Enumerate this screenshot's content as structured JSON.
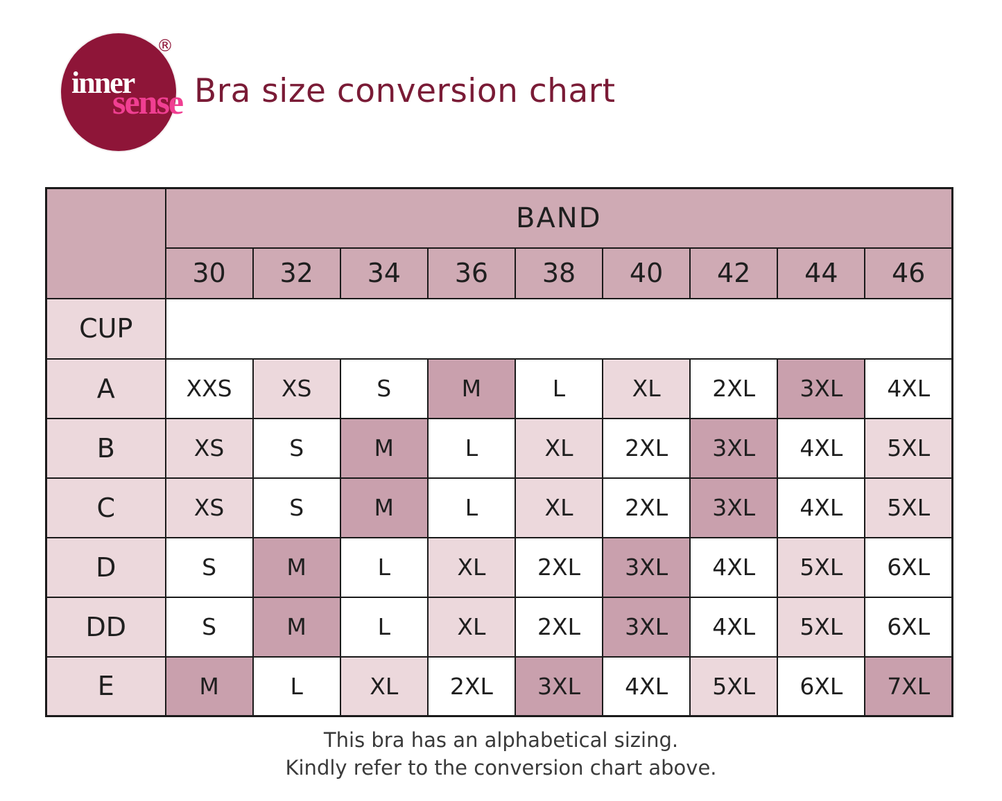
{
  "logo": {
    "word_top": "inner",
    "word_bottom": "sense",
    "registered_mark": "®"
  },
  "title": "Bra size conversion chart",
  "table": {
    "band_header": "BAND",
    "cup_header": "CUP",
    "band_sizes": [
      "30",
      "32",
      "34",
      "36",
      "38",
      "40",
      "42",
      "44",
      "46"
    ],
    "shade_legend": {
      "w": "white",
      "l": "light-pink",
      "d": "dark-pink"
    },
    "rows": [
      {
        "cup": "A",
        "cells": [
          {
            "v": "XXS",
            "s": "w"
          },
          {
            "v": "XS",
            "s": "l"
          },
          {
            "v": "S",
            "s": "w"
          },
          {
            "v": "M",
            "s": "d"
          },
          {
            "v": "L",
            "s": "w"
          },
          {
            "v": "XL",
            "s": "l"
          },
          {
            "v": "2XL",
            "s": "w"
          },
          {
            "v": "3XL",
            "s": "d"
          },
          {
            "v": "4XL",
            "s": "w"
          }
        ]
      },
      {
        "cup": "B",
        "cells": [
          {
            "v": "XS",
            "s": "l"
          },
          {
            "v": "S",
            "s": "w"
          },
          {
            "v": "M",
            "s": "d"
          },
          {
            "v": "L",
            "s": "w"
          },
          {
            "v": "XL",
            "s": "l"
          },
          {
            "v": "2XL",
            "s": "w"
          },
          {
            "v": "3XL",
            "s": "d"
          },
          {
            "v": "4XL",
            "s": "w"
          },
          {
            "v": "5XL",
            "s": "l"
          }
        ]
      },
      {
        "cup": "C",
        "cells": [
          {
            "v": "XS",
            "s": "l"
          },
          {
            "v": "S",
            "s": "w"
          },
          {
            "v": "M",
            "s": "d"
          },
          {
            "v": "L",
            "s": "w"
          },
          {
            "v": "XL",
            "s": "l"
          },
          {
            "v": "2XL",
            "s": "w"
          },
          {
            "v": "3XL",
            "s": "d"
          },
          {
            "v": "4XL",
            "s": "w"
          },
          {
            "v": "5XL",
            "s": "l"
          }
        ]
      },
      {
        "cup": "D",
        "cells": [
          {
            "v": "S",
            "s": "w"
          },
          {
            "v": "M",
            "s": "d"
          },
          {
            "v": "L",
            "s": "w"
          },
          {
            "v": "XL",
            "s": "l"
          },
          {
            "v": "2XL",
            "s": "w"
          },
          {
            "v": "3XL",
            "s": "d"
          },
          {
            "v": "4XL",
            "s": "w"
          },
          {
            "v": "5XL",
            "s": "l"
          },
          {
            "v": "6XL",
            "s": "w"
          }
        ]
      },
      {
        "cup": "DD",
        "cells": [
          {
            "v": "S",
            "s": "w"
          },
          {
            "v": "M",
            "s": "d"
          },
          {
            "v": "L",
            "s": "w"
          },
          {
            "v": "XL",
            "s": "l"
          },
          {
            "v": "2XL",
            "s": "w"
          },
          {
            "v": "3XL",
            "s": "d"
          },
          {
            "v": "4XL",
            "s": "w"
          },
          {
            "v": "5XL",
            "s": "l"
          },
          {
            "v": "6XL",
            "s": "w"
          }
        ]
      },
      {
        "cup": "E",
        "cells": [
          {
            "v": "M",
            "s": "d"
          },
          {
            "v": "L",
            "s": "w"
          },
          {
            "v": "XL",
            "s": "l"
          },
          {
            "v": "2XL",
            "s": "w"
          },
          {
            "v": "3XL",
            "s": "d"
          },
          {
            "v": "4XL",
            "s": "w"
          },
          {
            "v": "5XL",
            "s": "l"
          },
          {
            "v": "6XL",
            "s": "w"
          },
          {
            "v": "7XL",
            "s": "d"
          }
        ]
      }
    ]
  },
  "footer": {
    "line1": "This bra has an alphabetical sizing.",
    "line2": "Kindly refer to the conversion chart above."
  },
  "colors": {
    "header-pink": "#cfaab4",
    "label-pink": "#ecd8dc",
    "light-cell": "#ecd8dc",
    "dark-cell": "#c9a0ad",
    "border": "#1a1a1a",
    "title": "#7a1b36",
    "cell-text": "#1f1f1f",
    "footer-text": "#3a3a3a",
    "logo-circle": "#8e1538",
    "logo-inner": "#ffffff",
    "logo-sense": "#f03f92"
  },
  "chart_data": {
    "type": "table",
    "title": "Bra size conversion chart",
    "column_group_label": "BAND",
    "columns": [
      "CUP",
      "30",
      "32",
      "34",
      "36",
      "38",
      "40",
      "42",
      "44",
      "46"
    ],
    "rows": [
      [
        "A",
        "XXS",
        "XS",
        "S",
        "M",
        "L",
        "XL",
        "2XL",
        "3XL",
        "4XL"
      ],
      [
        "B",
        "XS",
        "S",
        "M",
        "L",
        "XL",
        "2XL",
        "3XL",
        "4XL",
        "5XL"
      ],
      [
        "C",
        "XS",
        "S",
        "M",
        "L",
        "XL",
        "2XL",
        "3XL",
        "4XL",
        "5XL"
      ],
      [
        "D",
        "S",
        "M",
        "L",
        "XL",
        "2XL",
        "3XL",
        "4XL",
        "5XL",
        "6XL"
      ],
      [
        "DD",
        "S",
        "M",
        "L",
        "XL",
        "2XL",
        "3XL",
        "4XL",
        "5XL",
        "6XL"
      ],
      [
        "E",
        "M",
        "L",
        "XL",
        "2XL",
        "3XL",
        "4XL",
        "5XL",
        "6XL",
        "7XL"
      ]
    ]
  }
}
